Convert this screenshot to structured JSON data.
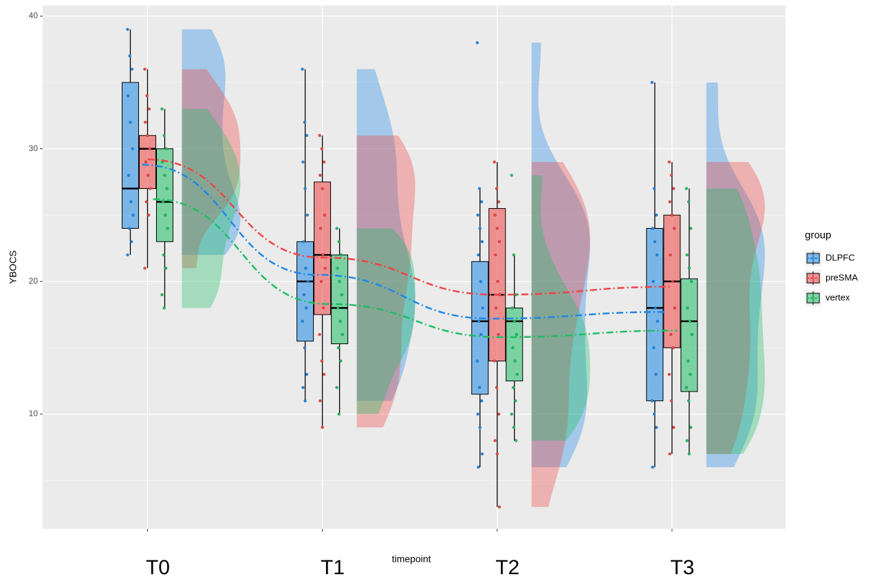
{
  "chart_data": {
    "type": "raincloud",
    "y_label": "YBOCS",
    "x_label": "timepoint",
    "categories": [
      "T0",
      "T1",
      "T2",
      "T3"
    ],
    "ylim": [
      1.35,
      40.8
    ],
    "yticks": [
      10,
      20,
      30,
      40
    ],
    "grid": true,
    "legend_title": "group",
    "legend_position": "right",
    "series": [
      {
        "name": "DLPFC",
        "color": "#1E88E5",
        "boxes": [
          [
            22,
            24,
            27,
            35,
            39
          ],
          [
            11,
            15.5,
            20,
            23,
            36
          ],
          [
            6,
            11.5,
            17,
            21.5,
            27
          ],
          [
            6,
            11,
            18,
            24,
            35
          ]
        ],
        "means": [
          28.8,
          20.5,
          17.2,
          17.7
        ],
        "points": [
          [
            39,
            37,
            36,
            34,
            32,
            30,
            28,
            26,
            25,
            24,
            23,
            22
          ],
          [
            36,
            32,
            31,
            29,
            27,
            25,
            23,
            21,
            20,
            19,
            18,
            17,
            15,
            13,
            12,
            11
          ],
          [
            38,
            27,
            26,
            25,
            24,
            23,
            22,
            20,
            18,
            17,
            16,
            14,
            12,
            11,
            10,
            9,
            7,
            6
          ],
          [
            35,
            27,
            25,
            24,
            23,
            22,
            20,
            18,
            17,
            15,
            13,
            11,
            10,
            9,
            6
          ]
        ]
      },
      {
        "name": "preSMA",
        "color": "#F04444",
        "boxes": [
          [
            21,
            27,
            30,
            31,
            36
          ],
          [
            9,
            17.5,
            22,
            27.5,
            31
          ],
          [
            3,
            14,
            19,
            25.5,
            29
          ],
          [
            7,
            15,
            20,
            25,
            29
          ]
        ],
        "means": [
          29.2,
          21.8,
          19,
          19.6
        ],
        "points": [
          [
            36,
            34,
            33,
            32,
            31,
            30,
            29,
            28,
            27,
            26,
            25,
            21
          ],
          [
            31,
            30,
            29,
            28,
            27,
            25,
            24,
            22,
            21,
            20,
            18,
            16,
            14,
            13,
            11,
            9
          ],
          [
            29,
            27,
            26,
            25,
            24,
            23,
            22,
            20,
            19,
            18,
            16,
            14,
            12,
            10,
            8,
            7,
            3
          ],
          [
            29,
            28,
            27,
            26,
            25,
            24,
            22,
            20,
            18,
            16,
            15,
            13,
            11,
            9,
            7
          ]
        ]
      },
      {
        "name": "vertex",
        "color": "#1DBE63",
        "boxes": [
          [
            18,
            23,
            26,
            30,
            33
          ],
          [
            10,
            15.3,
            18,
            22,
            24
          ],
          [
            8,
            12.5,
            17,
            18,
            22
          ],
          [
            7,
            11.7,
            17,
            20.2,
            27
          ]
        ],
        "means": [
          26.2,
          18.3,
          15.8,
          16.3
        ],
        "points": [
          [
            33,
            31,
            30,
            29,
            28,
            27,
            26,
            25,
            24,
            22,
            21,
            19,
            18
          ],
          [
            24,
            23,
            22,
            21,
            20,
            19,
            18,
            17,
            16,
            15,
            14,
            12,
            10
          ],
          [
            28,
            22,
            19,
            18,
            17,
            16,
            15,
            14,
            13,
            12,
            11,
            10,
            9,
            8
          ],
          [
            27,
            26,
            24,
            22,
            21,
            20,
            18,
            17,
            16,
            14,
            13,
            12,
            11,
            9,
            8,
            7
          ]
        ]
      }
    ]
  }
}
